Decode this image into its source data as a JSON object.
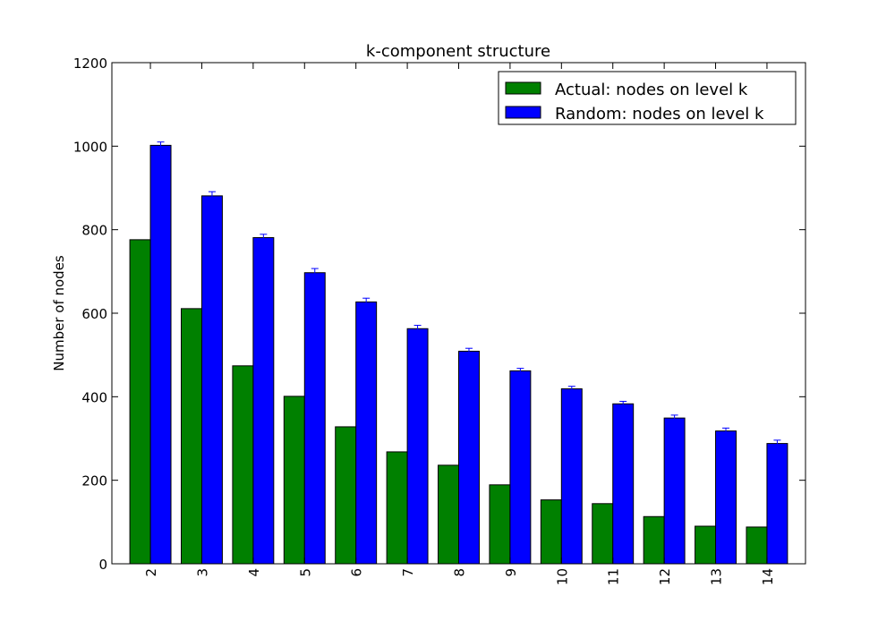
{
  "chart_data": {
    "type": "bar",
    "title": "k-component structure",
    "xlabel": "",
    "ylabel": "Number of nodes",
    "categories": [
      "2",
      "3",
      "4",
      "5",
      "6",
      "7",
      "8",
      "9",
      "10",
      "11",
      "12",
      "13",
      "14"
    ],
    "series": [
      {
        "name": "Actual: nodes on level k",
        "color": "#008000",
        "values": [
          776,
          611,
          474,
          401,
          328,
          268,
          236,
          189,
          153,
          144,
          113,
          90,
          88
        ]
      },
      {
        "name": "Random: nodes on level k",
        "color": "#0000ff",
        "values": [
          1002,
          881,
          781,
          697,
          627,
          563,
          509,
          462,
          419,
          383,
          349,
          318,
          288
        ],
        "error": [
          8,
          10,
          8,
          10,
          9,
          8,
          7,
          6,
          6,
          6,
          7,
          7,
          8
        ]
      }
    ],
    "ylim": [
      0,
      1200
    ],
    "yticks": [
      0,
      200,
      400,
      600,
      800,
      1000,
      1200
    ],
    "xtick_rotation": "vertical",
    "legend_position": "top-right",
    "grid": false
  }
}
